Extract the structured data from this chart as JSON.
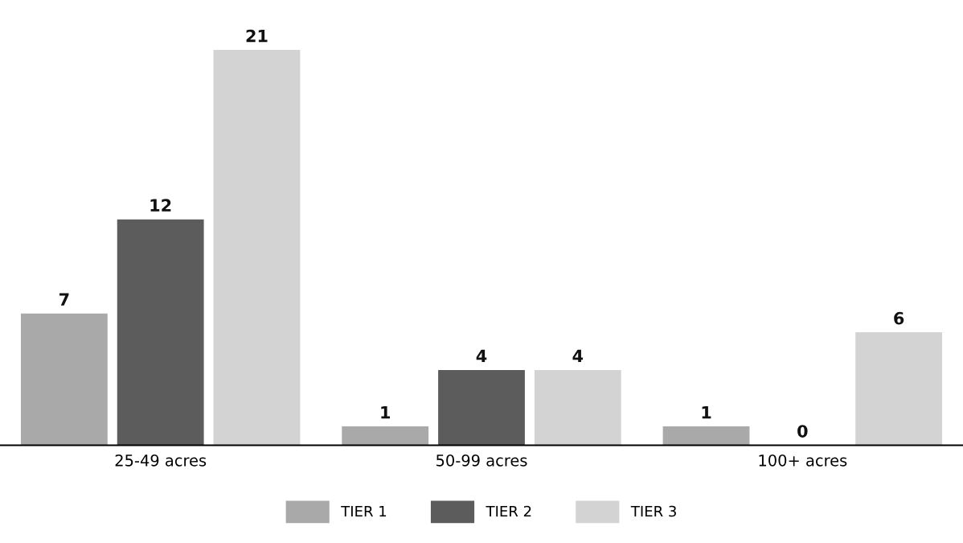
{
  "chart_data": {
    "type": "bar",
    "categories": [
      "25-49 acres",
      "50-99 acres",
      "100+ acres"
    ],
    "series": [
      {
        "name": "TIER 1",
        "color": "#a9a9a9",
        "values": [
          7,
          1,
          1
        ]
      },
      {
        "name": "TIER 2",
        "color": "#5c5c5c",
        "values": [
          12,
          4,
          0
        ]
      },
      {
        "name": "TIER 3",
        "color": "#d3d3d3",
        "values": [
          21,
          4,
          6
        ]
      }
    ],
    "data_labels": true,
    "legend": "bottom",
    "grid": false
  }
}
